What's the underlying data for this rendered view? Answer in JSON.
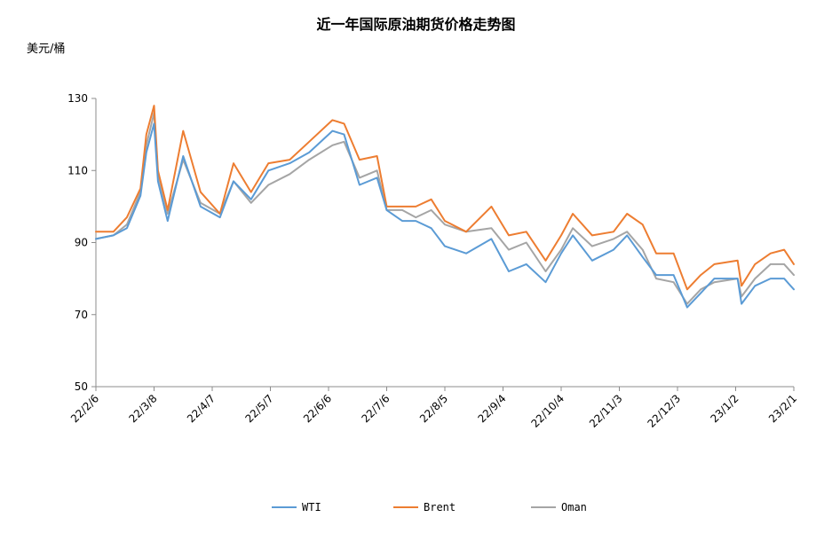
{
  "chart_data": {
    "type": "line",
    "title": "近一年国际原油期货价格走势图",
    "ylabel": "美元/桶",
    "xlabel": "",
    "ylim": [
      50,
      130
    ],
    "yticks": [
      50,
      70,
      90,
      110,
      130
    ],
    "xlim": [
      "2022-02-06",
      "2023-02-01"
    ],
    "xticks": [
      {
        "label": "22/2/6",
        "date": "2022-02-06"
      },
      {
        "label": "22/3/8",
        "date": "2022-03-08"
      },
      {
        "label": "22/4/7",
        "date": "2022-04-07"
      },
      {
        "label": "22/5/7",
        "date": "2022-05-07"
      },
      {
        "label": "22/6/6",
        "date": "2022-06-06"
      },
      {
        "label": "22/7/6",
        "date": "2022-07-06"
      },
      {
        "label": "22/8/5",
        "date": "2022-08-05"
      },
      {
        "label": "22/9/4",
        "date": "2022-09-04"
      },
      {
        "label": "22/10/4",
        "date": "2022-10-04"
      },
      {
        "label": "22/11/3",
        "date": "2022-11-03"
      },
      {
        "label": "22/12/3",
        "date": "2022-12-03"
      },
      {
        "label": "23/1/2",
        "date": "2023-01-02"
      },
      {
        "label": "23/2/1",
        "date": "2023-02-01"
      }
    ],
    "grid": false,
    "legend_position": "bottom",
    "x": [
      "2022-02-06",
      "2022-02-15",
      "2022-02-22",
      "2022-03-01",
      "2022-03-04",
      "2022-03-08",
      "2022-03-10",
      "2022-03-15",
      "2022-03-23",
      "2022-04-01",
      "2022-04-11",
      "2022-04-18",
      "2022-04-27",
      "2022-05-06",
      "2022-05-17",
      "2022-05-27",
      "2022-06-08",
      "2022-06-14",
      "2022-06-22",
      "2022-07-01",
      "2022-07-06",
      "2022-07-14",
      "2022-07-21",
      "2022-07-29",
      "2022-08-05",
      "2022-08-16",
      "2022-08-29",
      "2022-09-07",
      "2022-09-16",
      "2022-09-26",
      "2022-10-04",
      "2022-10-10",
      "2022-10-20",
      "2022-10-31",
      "2022-11-07",
      "2022-11-15",
      "2022-11-22",
      "2022-12-01",
      "2022-12-08",
      "2022-12-15",
      "2022-12-22",
      "2023-01-03",
      "2023-01-05",
      "2023-01-12",
      "2023-01-20",
      "2023-01-27",
      "2023-02-01"
    ],
    "series": [
      {
        "name": "WTI",
        "color": "#5b9bd5",
        "values": [
          91,
          92,
          94,
          103,
          115,
          123,
          107,
          96,
          114,
          100,
          97,
          107,
          102,
          110,
          112,
          115,
          121,
          120,
          106,
          108,
          99,
          96,
          96,
          94,
          89,
          87,
          91,
          82,
          84,
          79,
          87,
          92,
          85,
          88,
          92,
          86,
          81,
          81,
          72,
          76,
          80,
          80,
          73,
          78,
          80,
          80,
          77
        ]
      },
      {
        "name": "Brent",
        "color": "#ed7d31",
        "values": [
          93,
          93,
          97,
          105,
          120,
          128,
          110,
          99,
          121,
          104,
          98,
          112,
          104,
          112,
          113,
          118,
          124,
          123,
          113,
          114,
          100,
          100,
          100,
          102,
          96,
          93,
          100,
          92,
          93,
          85,
          92,
          98,
          92,
          93,
          98,
          95,
          87,
          87,
          77,
          81,
          84,
          85,
          78,
          84,
          87,
          88,
          84
        ]
      },
      {
        "name": "Oman",
        "color": "#a5a5a5",
        "values": [
          91,
          92,
          95,
          104,
          117,
          126,
          109,
          98,
          113,
          101,
          98,
          107,
          101,
          106,
          109,
          113,
          117,
          118,
          108,
          110,
          99,
          99,
          97,
          99,
          95,
          93,
          94,
          88,
          90,
          82,
          88,
          94,
          89,
          91,
          93,
          88,
          80,
          79,
          73,
          77,
          79,
          80,
          75,
          80,
          84,
          84,
          81
        ]
      }
    ]
  }
}
